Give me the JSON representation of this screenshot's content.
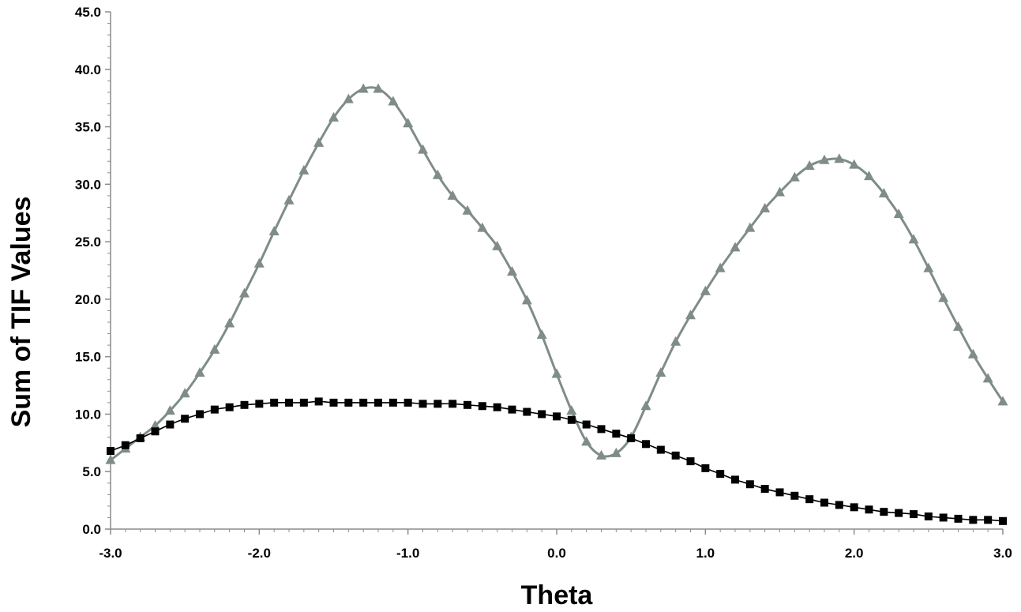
{
  "chart_data": {
    "type": "line",
    "title": "",
    "xlabel": "Theta",
    "ylabel": "Sum of TIF Values",
    "xlim": [
      -3.0,
      3.0
    ],
    "ylim": [
      0.0,
      45.0
    ],
    "x_ticks": [
      "-3.0",
      "-2.0",
      "-1.0",
      "0.0",
      "1.0",
      "2.0",
      "3.0"
    ],
    "y_ticks": [
      "0.0",
      "5.0",
      "10.0",
      "15.0",
      "20.0",
      "25.0",
      "30.0",
      "35.0",
      "40.0",
      "45.0"
    ],
    "grid": false,
    "legend": "none",
    "x": [
      -3.0,
      -2.9,
      -2.8,
      -2.7,
      -2.6,
      -2.5,
      -2.4,
      -2.3,
      -2.2,
      -2.1,
      -2.0,
      -1.9,
      -1.8,
      -1.7,
      -1.6,
      -1.5,
      -1.4,
      -1.3,
      -1.2,
      -1.1,
      -1.0,
      -0.9,
      -0.8,
      -0.7,
      -0.6,
      -0.5,
      -0.4,
      -0.3,
      -0.2,
      -0.1,
      0.0,
      0.1,
      0.2,
      0.3,
      0.4,
      0.5,
      0.6,
      0.7,
      0.8,
      0.9,
      1.0,
      1.1,
      1.2,
      1.3,
      1.4,
      1.5,
      1.6,
      1.7,
      1.8,
      1.9,
      2.0,
      2.1,
      2.2,
      2.3,
      2.4,
      2.5,
      2.6,
      2.7,
      2.8,
      2.9,
      3.0
    ],
    "series": [
      {
        "marker": "triangle",
        "color": "#7f8c8a",
        "values": [
          6.0,
          7.0,
          8.0,
          9.0,
          10.3,
          11.8,
          13.6,
          15.6,
          17.9,
          20.5,
          23.1,
          25.9,
          28.6,
          31.2,
          33.6,
          35.8,
          37.4,
          38.3,
          38.3,
          37.2,
          35.3,
          33.0,
          30.8,
          29.0,
          27.7,
          26.2,
          24.6,
          22.4,
          19.9,
          16.9,
          13.5,
          10.3,
          7.6,
          6.4,
          6.6,
          8.0,
          10.7,
          13.6,
          16.3,
          18.6,
          20.7,
          22.7,
          24.5,
          26.2,
          27.9,
          29.3,
          30.6,
          31.6,
          32.1,
          32.2,
          31.7,
          30.7,
          29.2,
          27.4,
          25.2,
          22.7,
          20.1,
          17.6,
          15.2,
          13.1,
          11.1
        ]
      },
      {
        "marker": "square",
        "color": "#000000",
        "values": [
          6.8,
          7.3,
          7.9,
          8.5,
          9.1,
          9.6,
          10.0,
          10.4,
          10.6,
          10.8,
          10.9,
          11.0,
          11.0,
          11.0,
          11.1,
          11.0,
          11.0,
          11.0,
          11.0,
          11.0,
          11.0,
          10.9,
          10.9,
          10.9,
          10.8,
          10.7,
          10.6,
          10.4,
          10.2,
          10.0,
          9.8,
          9.5,
          9.1,
          8.7,
          8.3,
          7.9,
          7.4,
          6.9,
          6.4,
          5.9,
          5.3,
          4.8,
          4.3,
          3.9,
          3.5,
          3.2,
          2.9,
          2.6,
          2.3,
          2.1,
          1.9,
          1.7,
          1.5,
          1.4,
          1.3,
          1.1,
          1.0,
          0.9,
          0.8,
          0.8,
          0.7
        ]
      }
    ]
  }
}
